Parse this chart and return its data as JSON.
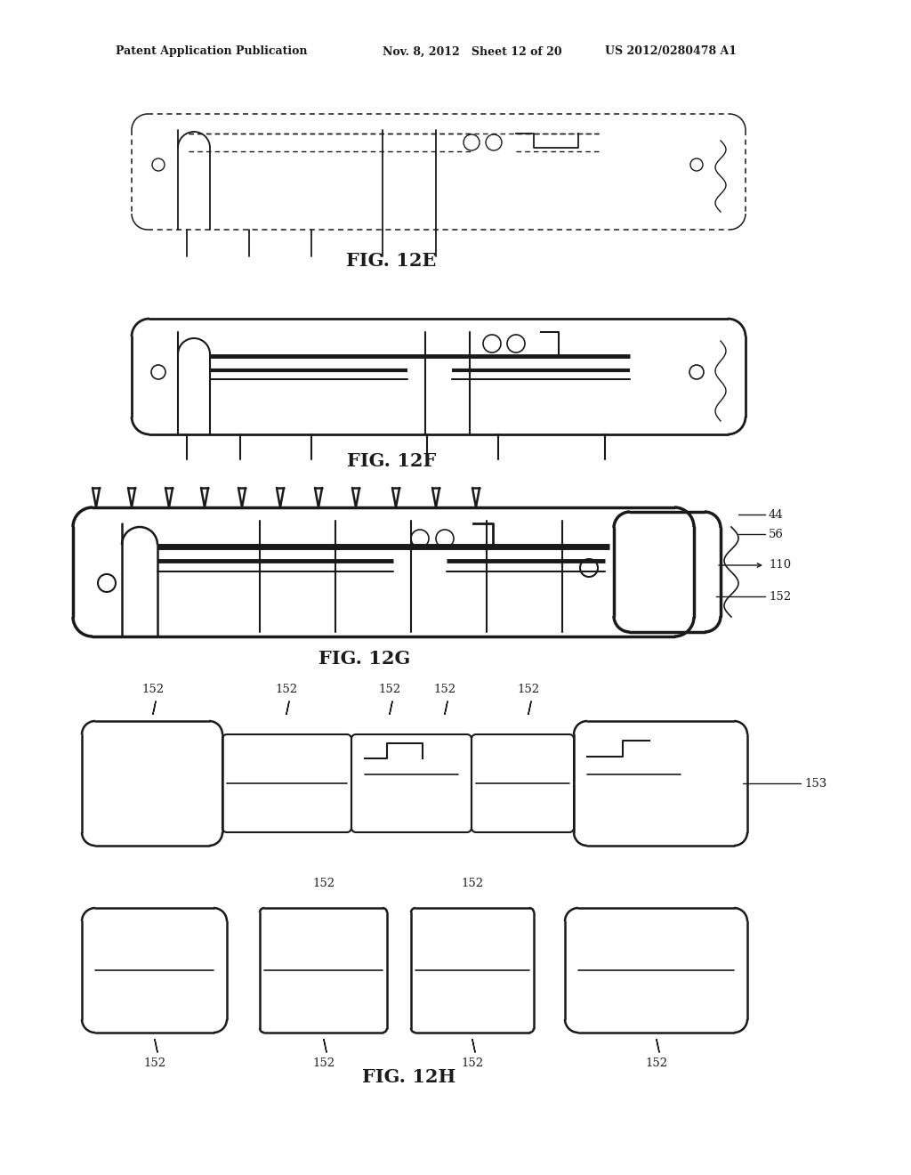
{
  "header_left": "Patent Application Publication",
  "header_mid": "Nov. 8, 2012   Sheet 12 of 20",
  "header_right": "US 2012/0280478 A1",
  "fig_labels": [
    "FIG. 12E",
    "FIG. 12F",
    "FIG. 12G",
    "FIG. 12H"
  ],
  "label_44": "44",
  "label_56": "56",
  "label_110": "110",
  "label_152": "152",
  "label_153": "153",
  "bg": "#ffffff",
  "lc": "#1a1a1a"
}
